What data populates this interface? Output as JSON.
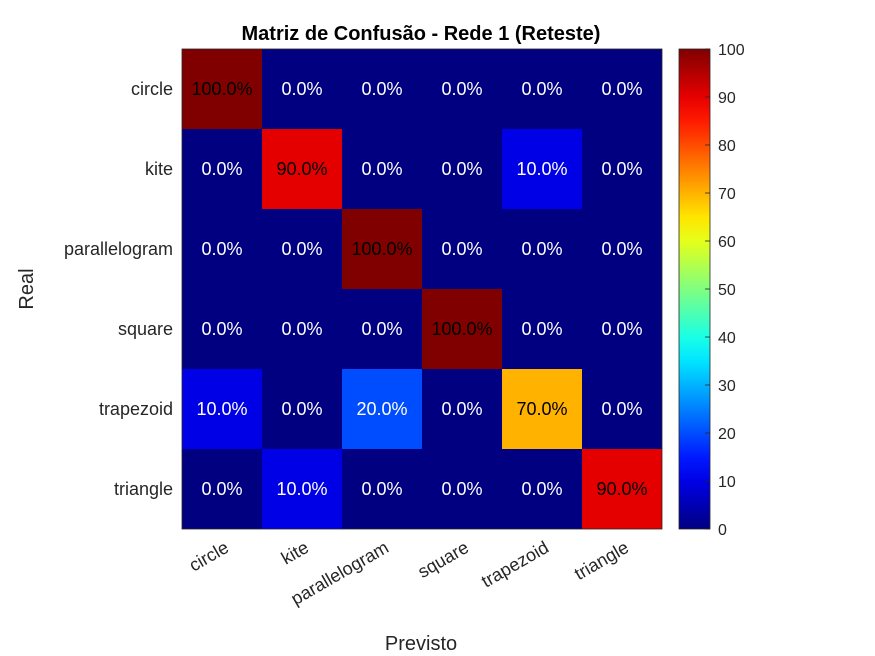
{
  "chart_data": {
    "type": "heatmap",
    "title": "Matriz de Confusão - Rede 1 (Reteste)",
    "xlabel": "Previsto",
    "ylabel": "Real",
    "x_categories": [
      "circle",
      "kite",
      "parallelogram",
      "square",
      "trapezoid",
      "triangle"
    ],
    "y_categories": [
      "circle",
      "kite",
      "parallelogram",
      "square",
      "trapezoid",
      "triangle"
    ],
    "values": [
      [
        100,
        0,
        0,
        0,
        0,
        0
      ],
      [
        0,
        90,
        0,
        0,
        10,
        0
      ],
      [
        0,
        0,
        100,
        0,
        0,
        0
      ],
      [
        0,
        0,
        0,
        100,
        0,
        0
      ],
      [
        10,
        0,
        20,
        0,
        70,
        0
      ],
      [
        0,
        10,
        0,
        0,
        0,
        90
      ]
    ],
    "cell_labels": [
      [
        "100.0%",
        "0.0%",
        "0.0%",
        "0.0%",
        "0.0%",
        "0.0%"
      ],
      [
        "0.0%",
        "90.0%",
        "0.0%",
        "0.0%",
        "10.0%",
        "0.0%"
      ],
      [
        "0.0%",
        "0.0%",
        "100.0%",
        "0.0%",
        "0.0%",
        "0.0%"
      ],
      [
        "0.0%",
        "0.0%",
        "0.0%",
        "100.0%",
        "0.0%",
        "0.0%"
      ],
      [
        "10.0%",
        "0.0%",
        "20.0%",
        "0.0%",
        "70.0%",
        "0.0%"
      ],
      [
        "0.0%",
        "10.0%",
        "0.0%",
        "0.0%",
        "0.0%",
        "90.0%"
      ]
    ],
    "colormap": "jet",
    "color_range": [
      0,
      100
    ],
    "colorbar_ticks": [
      "0",
      "10",
      "20",
      "30",
      "40",
      "50",
      "60",
      "70",
      "80",
      "90",
      "100"
    ]
  }
}
